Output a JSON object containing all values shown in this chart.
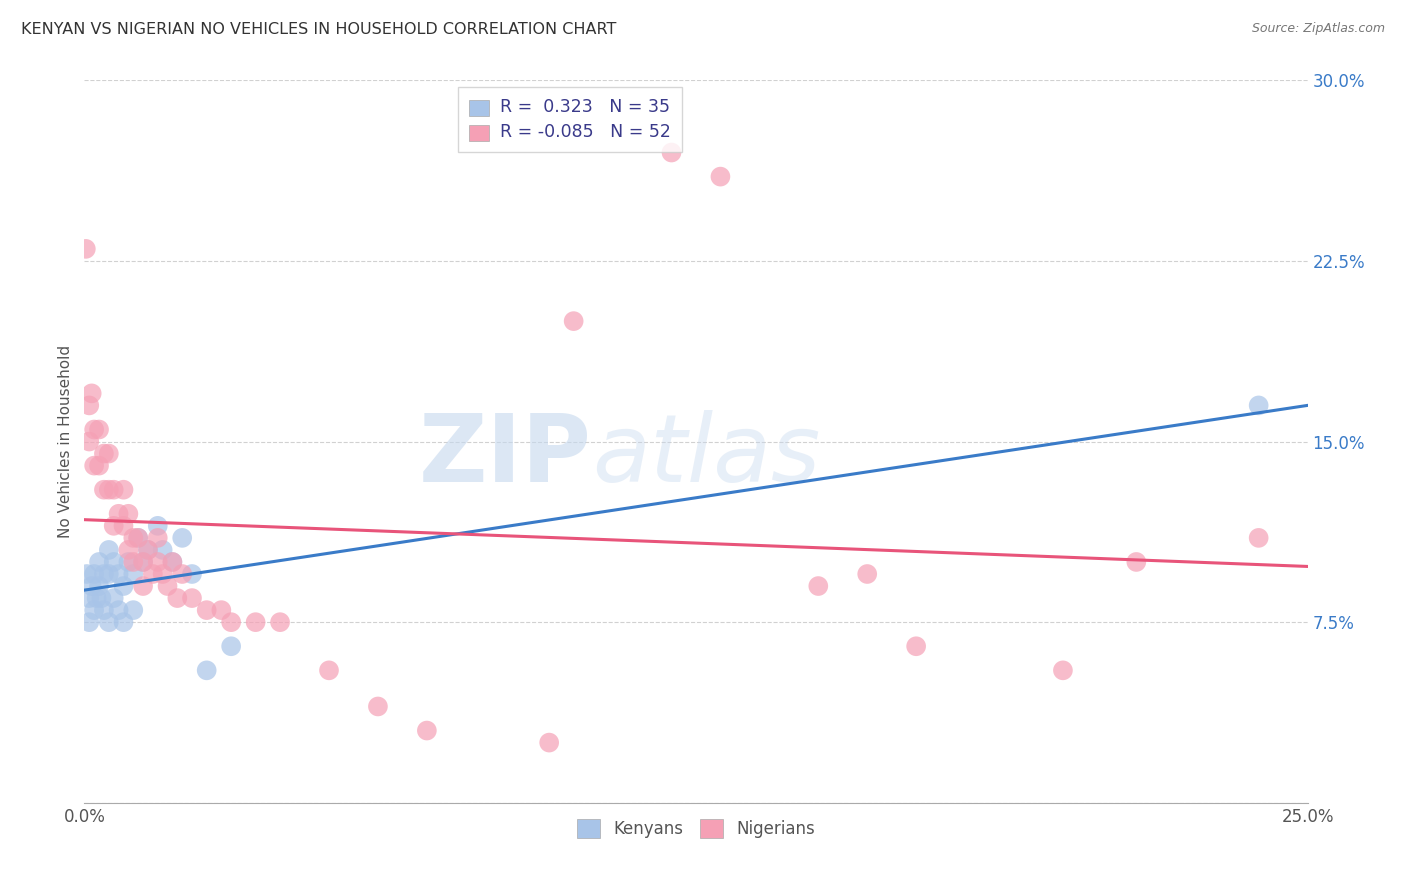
{
  "title": "KENYAN VS NIGERIAN NO VEHICLES IN HOUSEHOLD CORRELATION CHART",
  "source": "Source: ZipAtlas.com",
  "ylabel": "No Vehicles in Household",
  "xlim": [
    0.0,
    0.25
  ],
  "ylim": [
    0.0,
    0.3
  ],
  "xticks": [
    0.0,
    0.05,
    0.1,
    0.15,
    0.2,
    0.25
  ],
  "xtick_labels": [
    "0.0%",
    "",
    "",
    "",
    "",
    "25.0%"
  ],
  "yticks": [
    0.0,
    0.075,
    0.15,
    0.225,
    0.3
  ],
  "ytick_labels": [
    "",
    "7.5%",
    "15.0%",
    "22.5%",
    "30.0%"
  ],
  "kenyan_R": 0.323,
  "kenyan_N": 35,
  "nigerian_R": -0.085,
  "nigerian_N": 52,
  "kenyan_color": "#a8c4e8",
  "nigerian_color": "#f5a0b5",
  "kenyan_line_color": "#3a7bc8",
  "nigerian_line_color": "#e8547a",
  "watermark_zip": "ZIP",
  "watermark_atlas": "atlas",
  "kenyan_x": [
    0.0005,
    0.001,
    0.001,
    0.0015,
    0.002,
    0.002,
    0.0025,
    0.003,
    0.003,
    0.0035,
    0.004,
    0.004,
    0.005,
    0.005,
    0.005,
    0.006,
    0.006,
    0.007,
    0.007,
    0.008,
    0.008,
    0.009,
    0.01,
    0.01,
    0.011,
    0.012,
    0.013,
    0.015,
    0.016,
    0.018,
    0.02,
    0.022,
    0.025,
    0.03,
    0.24
  ],
  "kenyan_y": [
    0.095,
    0.085,
    0.075,
    0.09,
    0.095,
    0.08,
    0.085,
    0.1,
    0.09,
    0.085,
    0.095,
    0.08,
    0.105,
    0.095,
    0.075,
    0.1,
    0.085,
    0.095,
    0.08,
    0.09,
    0.075,
    0.1,
    0.095,
    0.08,
    0.11,
    0.1,
    0.105,
    0.115,
    0.105,
    0.1,
    0.11,
    0.095,
    0.055,
    0.065,
    0.165
  ],
  "nigerian_x": [
    0.0003,
    0.001,
    0.001,
    0.0015,
    0.002,
    0.002,
    0.003,
    0.003,
    0.004,
    0.004,
    0.005,
    0.005,
    0.006,
    0.006,
    0.007,
    0.008,
    0.008,
    0.009,
    0.009,
    0.01,
    0.01,
    0.011,
    0.012,
    0.012,
    0.013,
    0.014,
    0.015,
    0.015,
    0.016,
    0.017,
    0.018,
    0.019,
    0.02,
    0.022,
    0.025,
    0.028,
    0.03,
    0.035,
    0.04,
    0.05,
    0.06,
    0.07,
    0.095,
    0.1,
    0.12,
    0.13,
    0.15,
    0.16,
    0.17,
    0.2,
    0.215,
    0.24
  ],
  "nigerian_y": [
    0.23,
    0.165,
    0.15,
    0.17,
    0.155,
    0.14,
    0.155,
    0.14,
    0.145,
    0.13,
    0.145,
    0.13,
    0.13,
    0.115,
    0.12,
    0.13,
    0.115,
    0.12,
    0.105,
    0.11,
    0.1,
    0.11,
    0.1,
    0.09,
    0.105,
    0.095,
    0.11,
    0.1,
    0.095,
    0.09,
    0.1,
    0.085,
    0.095,
    0.085,
    0.08,
    0.08,
    0.075,
    0.075,
    0.075,
    0.055,
    0.04,
    0.03,
    0.025,
    0.2,
    0.27,
    0.26,
    0.09,
    0.095,
    0.065,
    0.055,
    0.1,
    0.11
  ],
  "kenyan_line_start_y": 0.092,
  "kenyan_line_end_y": 0.155,
  "nigerian_line_start_y": 0.12,
  "nigerian_line_end_y": 0.09
}
